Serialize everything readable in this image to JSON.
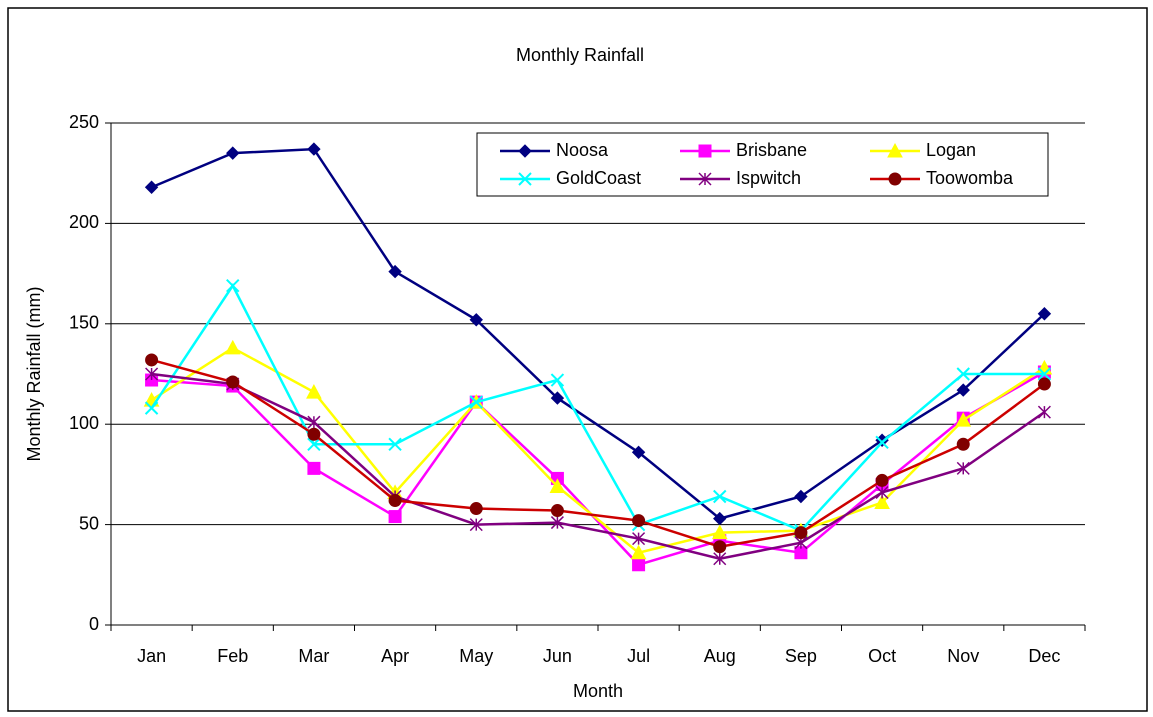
{
  "chart_data": {
    "type": "line",
    "title": "Monthly Rainfall",
    "x_label": "Month",
    "y_label": "Monthly Rainfall (mm)",
    "categories": [
      "Jan",
      "Feb",
      "Mar",
      "Apr",
      "May",
      "Jun",
      "Jul",
      "Aug",
      "Sep",
      "Oct",
      "Nov",
      "Dec"
    ],
    "ylim": [
      0,
      250
    ],
    "yticks": [
      0,
      50,
      100,
      150,
      200,
      250
    ],
    "grid": true,
    "legend": "upper right",
    "series": [
      {
        "name": "Noosa",
        "color": "#000080",
        "marker": "diamond",
        "values": [
          218,
          235,
          237,
          176,
          152,
          113,
          86,
          53,
          64,
          92,
          117,
          155
        ]
      },
      {
        "name": "Brisbane",
        "color": "#ff00ff",
        "marker": "square",
        "values": [
          122,
          119,
          78,
          54,
          111,
          73,
          30,
          42,
          36,
          70,
          103,
          126
        ]
      },
      {
        "name": "Logan",
        "color": "#ffff00",
        "marker": "triangle",
        "values": [
          112,
          138,
          116,
          66,
          111,
          69,
          36,
          46,
          47,
          61,
          102,
          128
        ]
      },
      {
        "name": "GoldCoast",
        "color": "#00ffff",
        "marker": "x",
        "values": [
          108,
          169,
          90,
          90,
          111,
          122,
          50,
          64,
          47,
          91,
          125,
          125
        ]
      },
      {
        "name": "Ispwitch",
        "color": "#800080",
        "marker": "star",
        "values": [
          125,
          120,
          101,
          64,
          50,
          51,
          43,
          33,
          41,
          66,
          78,
          106
        ]
      },
      {
        "name": "Toowomba",
        "color": "#cc0000",
        "marker": "circle",
        "values": [
          132,
          121,
          95,
          62,
          58,
          57,
          52,
          39,
          46,
          72,
          90,
          120
        ]
      }
    ]
  }
}
